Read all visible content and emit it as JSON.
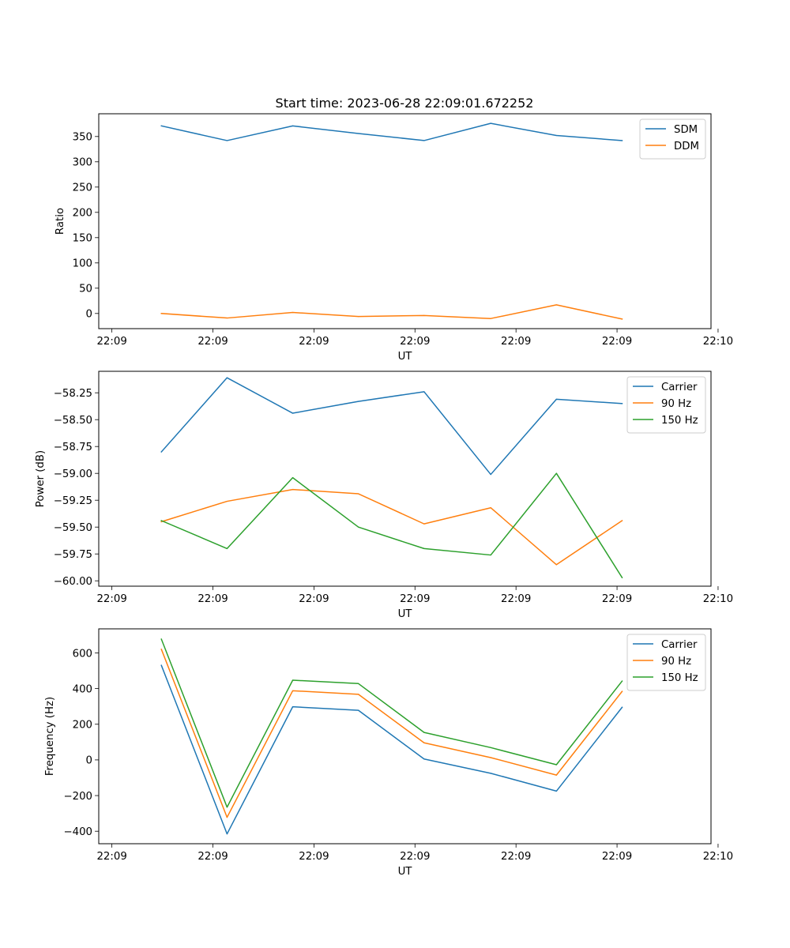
{
  "figure_title": "Start time: 2023-06-28 22:09:01.672252",
  "colors": {
    "blue": "#1f77b4",
    "orange": "#ff7f0e",
    "green": "#2ca02c"
  },
  "chart_data": [
    {
      "type": "line",
      "title": "Start time: 2023-06-28 22:09:01.672252",
      "xlabel": "UT",
      "ylabel": "Ratio",
      "x_unit": "seconds after 22:09:00 UT",
      "xlim": [
        -1.3,
        59.3
      ],
      "ylim": [
        -30,
        395
      ],
      "x_ticks": [
        {
          "value": 0,
          "label": "22:09"
        },
        {
          "value": 10,
          "label": "22:09"
        },
        {
          "value": 20,
          "label": "22:09"
        },
        {
          "value": 30,
          "label": "22:09"
        },
        {
          "value": 40,
          "label": "22:09"
        },
        {
          "value": 50,
          "label": "22:09"
        },
        {
          "value": 60,
          "label": "22:10"
        }
      ],
      "y_ticks": [
        {
          "value": 0,
          "label": "0"
        },
        {
          "value": 50,
          "label": "50"
        },
        {
          "value": 100,
          "label": "100"
        },
        {
          "value": 150,
          "label": "150"
        },
        {
          "value": 200,
          "label": "200"
        },
        {
          "value": 250,
          "label": "250"
        },
        {
          "value": 300,
          "label": "300"
        },
        {
          "value": 350,
          "label": "350"
        }
      ],
      "x": [
        4.9,
        11.4,
        17.9,
        24.4,
        30.9,
        37.5,
        44.0,
        50.5
      ],
      "legend_position": "upper right",
      "grid": false,
      "series": [
        {
          "name": "SDM",
          "color": "#1f77b4",
          "values": [
            371,
            342,
            371,
            356,
            342,
            376,
            352,
            342
          ]
        },
        {
          "name": "DDM",
          "color": "#ff7f0e",
          "values": [
            0,
            -9,
            2,
            -6,
            -4,
            -10,
            17,
            -11
          ]
        }
      ]
    },
    {
      "type": "line",
      "xlabel": "UT",
      "ylabel": "Power (dB)",
      "x_unit": "seconds after 22:09:00 UT",
      "xlim": [
        -1.3,
        59.3
      ],
      "ylim": [
        -60.05,
        -58.05
      ],
      "x_ticks": [
        {
          "value": 0,
          "label": "22:09"
        },
        {
          "value": 10,
          "label": "22:09"
        },
        {
          "value": 20,
          "label": "22:09"
        },
        {
          "value": 30,
          "label": "22:09"
        },
        {
          "value": 40,
          "label": "22:09"
        },
        {
          "value": 50,
          "label": "22:09"
        },
        {
          "value": 60,
          "label": "22:10"
        }
      ],
      "y_ticks": [
        {
          "value": -60.0,
          "label": "−60.00"
        },
        {
          "value": -59.75,
          "label": "−59.75"
        },
        {
          "value": -59.5,
          "label": "−59.50"
        },
        {
          "value": -59.25,
          "label": "−59.25"
        },
        {
          "value": -59.0,
          "label": "−59.00"
        },
        {
          "value": -58.75,
          "label": "−58.75"
        },
        {
          "value": -58.5,
          "label": "−58.50"
        },
        {
          "value": -58.25,
          "label": "−58.25"
        }
      ],
      "x": [
        4.9,
        11.4,
        17.9,
        24.4,
        30.9,
        37.5,
        44.0,
        50.5
      ],
      "legend_position": "upper right",
      "grid": false,
      "series": [
        {
          "name": "Carrier",
          "color": "#1f77b4",
          "values": [
            -58.8,
            -58.11,
            -58.44,
            -58.33,
            -58.24,
            -59.01,
            -58.31,
            -58.35
          ]
        },
        {
          "name": "90 Hz",
          "color": "#ff7f0e",
          "values": [
            -59.45,
            -59.26,
            -59.15,
            -59.19,
            -59.47,
            -59.32,
            -59.85,
            -59.44
          ]
        },
        {
          "name": "150 Hz",
          "color": "#2ca02c",
          "values": [
            -59.44,
            -59.7,
            -59.04,
            -59.5,
            -59.7,
            -59.76,
            -59.0,
            -59.97
          ]
        }
      ]
    },
    {
      "type": "line",
      "xlabel": "UT",
      "ylabel": "Frequency (Hz)",
      "x_unit": "seconds after 22:09:00 UT",
      "xlim": [
        -1.3,
        59.3
      ],
      "ylim": [
        -470,
        735
      ],
      "x_ticks": [
        {
          "value": 0,
          "label": "22:09"
        },
        {
          "value": 10,
          "label": "22:09"
        },
        {
          "value": 20,
          "label": "22:09"
        },
        {
          "value": 30,
          "label": "22:09"
        },
        {
          "value": 40,
          "label": "22:09"
        },
        {
          "value": 50,
          "label": "22:09"
        },
        {
          "value": 60,
          "label": "22:10"
        }
      ],
      "y_ticks": [
        {
          "value": -400,
          "label": "−400"
        },
        {
          "value": -200,
          "label": "−200"
        },
        {
          "value": 0,
          "label": "0"
        },
        {
          "value": 200,
          "label": "200"
        },
        {
          "value": 400,
          "label": "400"
        },
        {
          "value": 600,
          "label": "600"
        }
      ],
      "x": [
        4.9,
        11.4,
        17.9,
        24.4,
        30.9,
        37.5,
        44.0,
        50.5
      ],
      "legend_position": "upper right",
      "grid": false,
      "series": [
        {
          "name": "Carrier",
          "color": "#1f77b4",
          "values": [
            530,
            -415,
            298,
            278,
            5,
            -75,
            -175,
            295
          ]
        },
        {
          "name": "90 Hz",
          "color": "#ff7f0e",
          "values": [
            620,
            -322,
            388,
            368,
            96,
            13,
            -85,
            384
          ]
        },
        {
          "name": "150 Hz",
          "color": "#2ca02c",
          "values": [
            677,
            -265,
            447,
            428,
            154,
            69,
            -27,
            442
          ]
        }
      ]
    }
  ]
}
